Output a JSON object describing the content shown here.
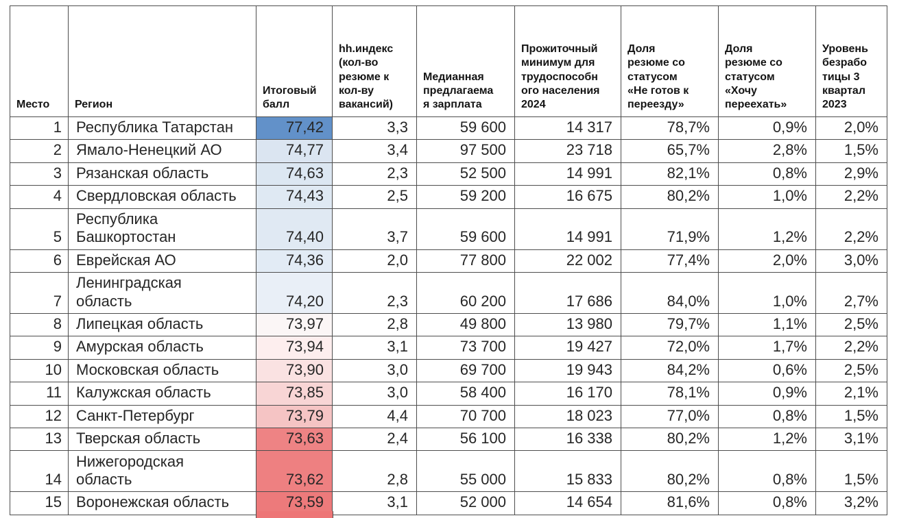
{
  "chart_data": {
    "type": "table",
    "title": "",
    "columns": [
      {
        "key": "place",
        "label": "Место",
        "align": "right"
      },
      {
        "key": "region",
        "label": "Регион",
        "align": "left"
      },
      {
        "key": "score",
        "label": "Итоговый\nбалл",
        "align": "right"
      },
      {
        "key": "hh_index",
        "label": "hh.индекс\n(кол-во\nрезюме к\nкол-ву\nвакансий)",
        "align": "right"
      },
      {
        "key": "salary",
        "label": "Медианная\nпредлагаема\nя зарплата",
        "align": "right"
      },
      {
        "key": "living_wage",
        "label": "Прожиточный\nминимум для\nтрудоспособн\nого населения\n2024",
        "align": "right"
      },
      {
        "key": "not_ready",
        "label": "Доля\nрезюме со\nстатусом\n«Не готов к\nпереезду»",
        "align": "right"
      },
      {
        "key": "want_move",
        "label": "Доля\nрезюме со\nстатусом\n«Хочу\nпереехать»",
        "align": "right"
      },
      {
        "key": "unemployment",
        "label": "Уровень\nбезрабо\nтицы 3\nквартал\n2023",
        "align": "right"
      }
    ],
    "rows": [
      {
        "place": "1",
        "region": "Республика Татарстан",
        "score": "77,42",
        "score_bg": "#6291c9",
        "hh_index": "3,3",
        "salary": "59 600",
        "living_wage": "14 317",
        "not_ready": "78,7%",
        "want_move": "0,9%",
        "unemployment": "2,0%"
      },
      {
        "place": "2",
        "region": "Ямало-Ненецкий АО",
        "score": "74,77",
        "score_bg": "#dbe5f1",
        "hh_index": "3,4",
        "salary": "97 500",
        "living_wage": "23 718",
        "not_ready": "65,7%",
        "want_move": "2,8%",
        "unemployment": "1,5%"
      },
      {
        "place": "3",
        "region": "Рязанская область",
        "score": "74,63",
        "score_bg": "#dce7f2",
        "hh_index": "2,3",
        "salary": "52 500",
        "living_wage": "14 991",
        "not_ready": "82,1%",
        "want_move": "0,8%",
        "unemployment": "2,9%"
      },
      {
        "place": "4",
        "region": "Свердловская область",
        "score": "74,43",
        "score_bg": "#dfe9f3",
        "hh_index": "2,5",
        "salary": "59 200",
        "living_wage": "16 675",
        "not_ready": "80,2%",
        "want_move": "1,0%",
        "unemployment": "2,2%"
      },
      {
        "place": "5",
        "region": "Республика\nБашкортостан",
        "score": "74,40",
        "score_bg": "#e0e9f3",
        "hh_index": "3,7",
        "salary": "59 600",
        "living_wage": "14 991",
        "not_ready": "71,9%",
        "want_move": "1,2%",
        "unemployment": "2,2%"
      },
      {
        "place": "6",
        "region": "Еврейская АО",
        "score": "74,36",
        "score_bg": "#e2ebf5",
        "hh_index": "2,0",
        "salary": "77 800",
        "living_wage": "22 002",
        "not_ready": "77,4%",
        "want_move": "2,0%",
        "unemployment": "3,0%"
      },
      {
        "place": "7",
        "region": "Ленинградская\nобласть",
        "score": "74,20",
        "score_bg": "#e9eff7",
        "hh_index": "2,3",
        "salary": "60 200",
        "living_wage": "17 686",
        "not_ready": "84,0%",
        "want_move": "1,0%",
        "unemployment": "2,7%"
      },
      {
        "place": "8",
        "region": "Липецкая область",
        "score": "73,97",
        "score_bg": "#fbf6f6",
        "hh_index": "2,8",
        "salary": "49 800",
        "living_wage": "13 980",
        "not_ready": "79,7%",
        "want_move": "1,1%",
        "unemployment": "2,5%"
      },
      {
        "place": "9",
        "region": "Амурская область",
        "score": "73,94",
        "score_bg": "#fdeeee",
        "hh_index": "3,1",
        "salary": "73 700",
        "living_wage": "19 427",
        "not_ready": "72,0%",
        "want_move": "1,7%",
        "unemployment": "2,2%"
      },
      {
        "place": "10",
        "region": "Московская область",
        "score": "73,90",
        "score_bg": "#fae2e2",
        "hh_index": "3,0",
        "salary": "69 700",
        "living_wage": "19 943",
        "not_ready": "84,2%",
        "want_move": "0,6%",
        "unemployment": "2,5%"
      },
      {
        "place": "11",
        "region": "Калужская область",
        "score": "73,85",
        "score_bg": "#f8d5d5",
        "hh_index": "3,0",
        "salary": "58 400",
        "living_wage": "16 170",
        "not_ready": "78,1%",
        "want_move": "0,9%",
        "unemployment": "2,1%"
      },
      {
        "place": "12",
        "region": "Санкт-Петербург",
        "score": "73,79",
        "score_bg": "#f5c4c4",
        "hh_index": "4,4",
        "salary": "70 700",
        "living_wage": "18 023",
        "not_ready": "77,0%",
        "want_move": "0,8%",
        "unemployment": "1,5%"
      },
      {
        "place": "13",
        "region": "Тверская область",
        "score": "73,63",
        "score_bg": "#ee8384",
        "hh_index": "2,4",
        "salary": "56 100",
        "living_wage": "16 338",
        "not_ready": "80,2%",
        "want_move": "1,2%",
        "unemployment": "3,1%"
      },
      {
        "place": "14",
        "region": "Нижегородская\nобласть",
        "score": "73,62",
        "score_bg": "#ee8081",
        "hh_index": "2,8",
        "salary": "55 000",
        "living_wage": "15 833",
        "not_ready": "80,2%",
        "want_move": "0,8%",
        "unemployment": "1,5%"
      },
      {
        "place": "15",
        "region": "Воронежская область",
        "score": "73,59",
        "score_bg": "#ed7a7b",
        "hh_index": "3,1",
        "salary": "52 000",
        "living_wage": "14 654",
        "not_ready": "81,6%",
        "want_move": "0,8%",
        "unemployment": "3,2%"
      }
    ],
    "score_color_scale": {
      "high": "#6291c9",
      "mid": "#fcfcff",
      "low": "#ed7576"
    },
    "next_row_peek_color": "#ed7576",
    "layout_hints": {
      "grid": "all-borders",
      "score_column_heatmap": true
    }
  }
}
